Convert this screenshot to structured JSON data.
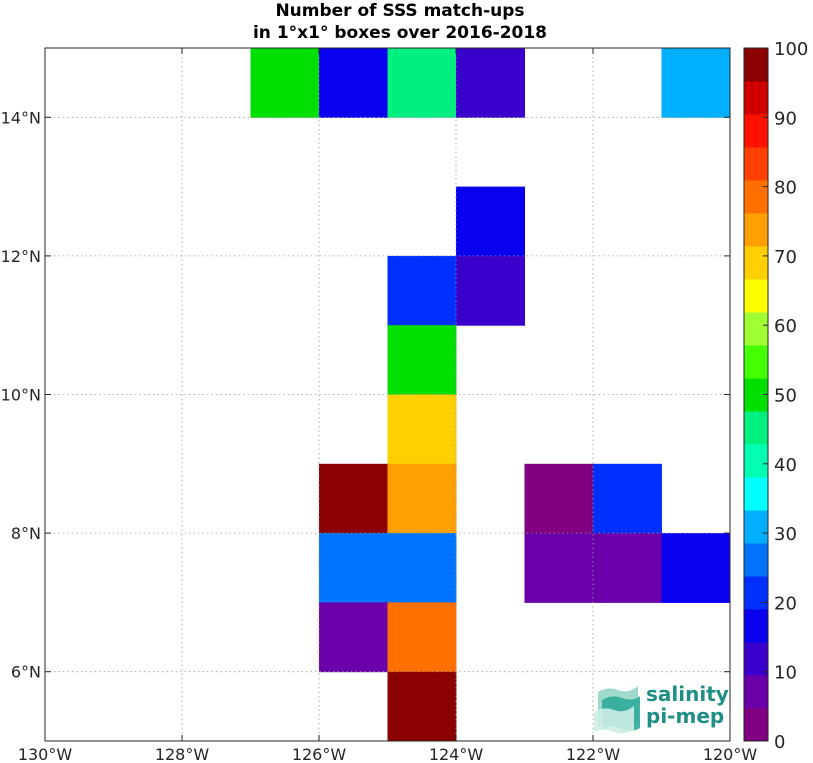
{
  "chart_data": {
    "type": "heatmap",
    "title": [
      "Number of SSS match-ups",
      "in 1°x1° boxes over 2016-2018"
    ],
    "xlim": [
      -130,
      -120
    ],
    "ylim": [
      5,
      15
    ],
    "xticks": [
      {
        "value": -130,
        "label": "130°W"
      },
      {
        "value": -128,
        "label": "128°W"
      },
      {
        "value": -126,
        "label": "126°W"
      },
      {
        "value": -124,
        "label": "124°W"
      },
      {
        "value": -122,
        "label": "122°W"
      },
      {
        "value": -120,
        "label": "120°W"
      }
    ],
    "yticks": [
      {
        "value": 6,
        "label": "6°N"
      },
      {
        "value": 8,
        "label": "8°N"
      },
      {
        "value": 10,
        "label": "10°N"
      },
      {
        "value": 12,
        "label": "12°N"
      },
      {
        "value": 14,
        "label": "14°N"
      }
    ],
    "grid": true,
    "colorbar": {
      "min": 0,
      "max": 100,
      "ticks": [
        0,
        10,
        20,
        30,
        40,
        50,
        60,
        70,
        80,
        90,
        100
      ],
      "colors": [
        "#800080",
        "#6a00aa",
        "#3a00cc",
        "#0a00f0",
        "#0030ff",
        "#0074ff",
        "#00b0ff",
        "#00ffff",
        "#00ffb0",
        "#00f080",
        "#00e000",
        "#44ff00",
        "#a0ff30",
        "#ffff00",
        "#ffd000",
        "#ffa000",
        "#ff7000",
        "#ff4000",
        "#ff1000",
        "#d00000",
        "#8b0000"
      ]
    },
    "cells": [
      {
        "lon": -127,
        "lat": 14,
        "value": 50
      },
      {
        "lon": -126,
        "lat": 14,
        "value": 18
      },
      {
        "lon": -125,
        "lat": 14,
        "value": 47
      },
      {
        "lon": -124,
        "lat": 14,
        "value": 12
      },
      {
        "lon": -121,
        "lat": 14,
        "value": 32
      },
      {
        "lon": -124,
        "lat": 12,
        "value": 17
      },
      {
        "lon": -125,
        "lat": 11,
        "value": 22
      },
      {
        "lon": -124,
        "lat": 11,
        "value": 12
      },
      {
        "lon": -125,
        "lat": 10,
        "value": 48
      },
      {
        "lon": -125,
        "lat": 9,
        "value": 68
      },
      {
        "lon": -126,
        "lat": 8,
        "value": 98
      },
      {
        "lon": -125,
        "lat": 8,
        "value": 73
      },
      {
        "lon": -123,
        "lat": 8,
        "value": 3
      },
      {
        "lon": -122,
        "lat": 8,
        "value": 22
      },
      {
        "lon": -126,
        "lat": 7,
        "value": 27
      },
      {
        "lon": -125,
        "lat": 7,
        "value": 27
      },
      {
        "lon": -123,
        "lat": 7,
        "value": 8
      },
      {
        "lon": -122,
        "lat": 7,
        "value": 8
      },
      {
        "lon": -121,
        "lat": 7,
        "value": 18
      },
      {
        "lon": -126,
        "lat": 6,
        "value": 8
      },
      {
        "lon": -125,
        "lat": 6,
        "value": 78
      },
      {
        "lon": -125,
        "lat": 5,
        "value": 98
      }
    ]
  },
  "logo": {
    "line1": "salinity",
    "line2": "pi-mep"
  }
}
